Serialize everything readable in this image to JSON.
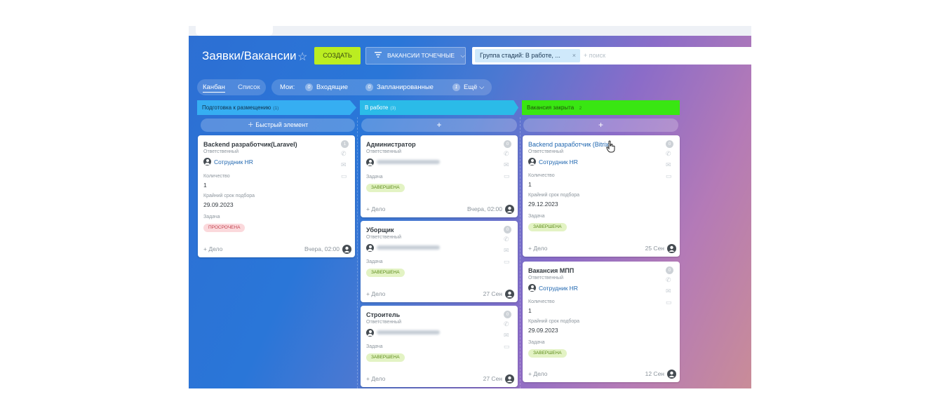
{
  "header": {
    "title": "Заявки/Вакансии",
    "create_label": "СОЗДАТЬ",
    "filter_label": "ВАКАНСИИ ТОЧЕЧНЫЕ",
    "search_tag": "Группа стадий: В работе, ...",
    "search_placeholder": "+ поиск"
  },
  "viewbar": {
    "kanban": "Канбан",
    "list": "Список",
    "my_label": "Мои:",
    "incoming": "Входящие",
    "incoming_count": "0",
    "planned": "Запланированные",
    "planned_count": "0",
    "more": "Ещё",
    "more_count": "1"
  },
  "columns": [
    {
      "title": "Подготовка к размещению",
      "count": "(1)",
      "color": "#36aef2",
      "add_label": "Быстрый элемент",
      "cards": [
        {
          "title": "Backend разработчик(Laravel)",
          "badge_count": "1",
          "responsible_label": "Ответственный",
          "responsible": "Сотрудник HR",
          "qty_label": "Количество",
          "qty": "1",
          "deadline_label": "Крайний срок подбора",
          "deadline": "29.09.2023",
          "task_label": "Задача",
          "status": "ПРОСРОЧЕНА",
          "deal_label": "+ Дело",
          "date": "Вчера, 02:00"
        }
      ]
    },
    {
      "title": "В работе",
      "count": "(3)",
      "color": "#2bbbe8",
      "add_label": "+",
      "cards": [
        {
          "title": "Администратор",
          "badge_count": "0",
          "responsible_label": "Ответственный",
          "task_label": "Задача",
          "status": "ЗАВЕРШЕНА",
          "deal_label": "+ Дело",
          "date": "Вчера, 02:00"
        },
        {
          "title": "Уборщик",
          "badge_count": "0",
          "responsible_label": "Ответственный",
          "task_label": "Задача",
          "status": "ЗАВЕРШЕНА",
          "deal_label": "+ Дело",
          "date": "27 Сен"
        },
        {
          "title": "Строитель",
          "badge_count": "0",
          "responsible_label": "Ответственный",
          "task_label": "Задача",
          "status": "ЗАВЕРШЕНА",
          "deal_label": "+ Дело",
          "date": "27 Сен"
        }
      ]
    },
    {
      "title": "Вакансия закрыта",
      "count": "2",
      "color": "#39e612",
      "add_label": "+",
      "cards": [
        {
          "title": "Backend разработчик (Bitrix)",
          "badge_count": "0",
          "responsible_label": "Ответственный",
          "responsible": "Сотрудник HR",
          "qty_label": "Количество",
          "qty": "1",
          "deadline_label": "Крайний срок подбора",
          "deadline": "29.12.2023",
          "task_label": "Задача",
          "status": "ЗАВЕРШЕНА",
          "deal_label": "+ Дело",
          "date": "25 Сен"
        },
        {
          "title": "Вакансия МПП",
          "badge_count": "0",
          "responsible_label": "Ответственный",
          "responsible": "Сотрудник HR",
          "qty_label": "Количество",
          "qty": "1",
          "deadline_label": "Крайний срок подбора",
          "deadline": "29.09.2023",
          "task_label": "Задача",
          "status": "ЗАВЕРШЕНА",
          "deal_label": "+ Дело",
          "date": "12 Сен"
        }
      ]
    }
  ],
  "colors": {
    "create_button": "#bbed21",
    "overdue": "#c2424f",
    "done": "#5a8a16"
  }
}
